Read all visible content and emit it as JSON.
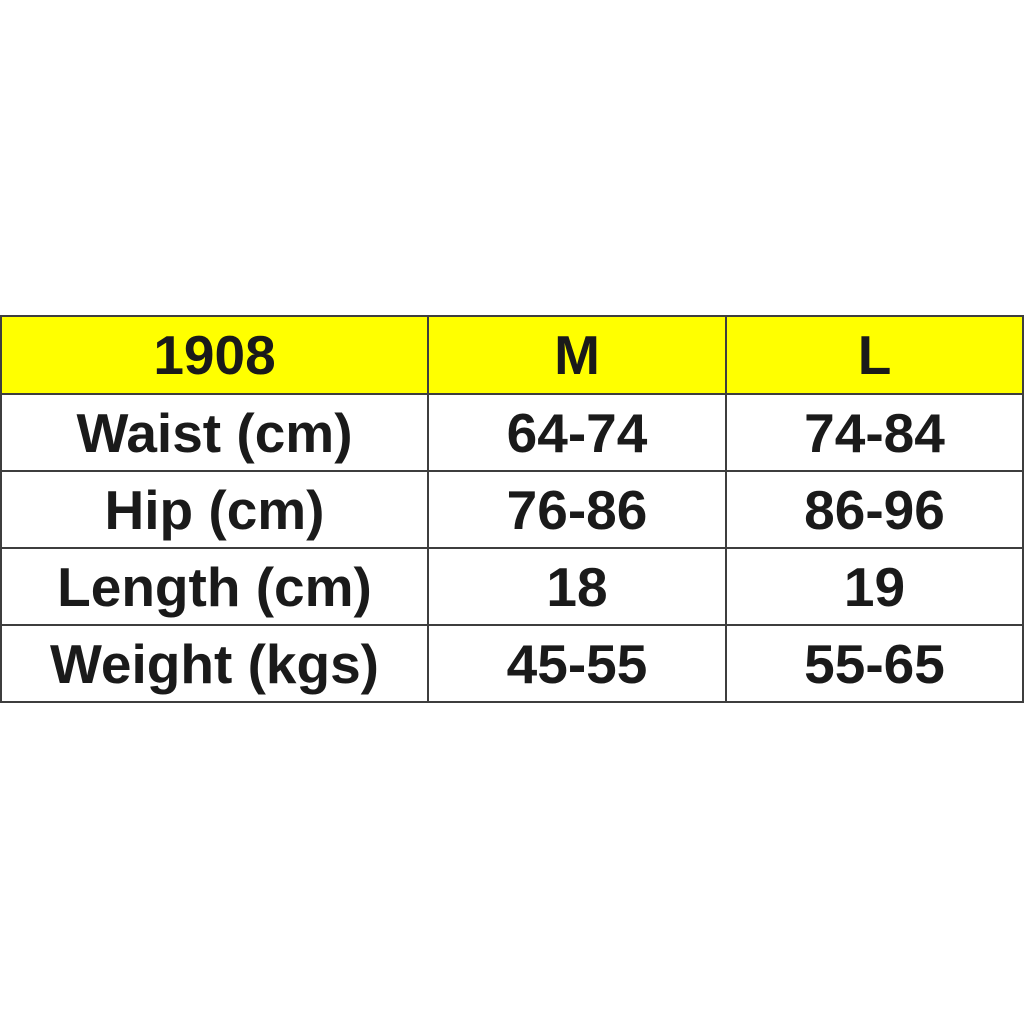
{
  "colors": {
    "header_bg": "#ffff00",
    "border": "#3e3e3e",
    "text": "#1a1a1a",
    "page_bg": "#ffffff"
  },
  "chart_data": {
    "type": "table",
    "title": "1908",
    "columns": [
      "1908",
      "M",
      "L"
    ],
    "rows": [
      [
        "Waist (cm)",
        "64-74",
        "74-84"
      ],
      [
        "Hip (cm)",
        "76-86",
        "86-96"
      ],
      [
        "Length (cm)",
        "18",
        "19"
      ],
      [
        "Weight (kgs)",
        "45-55",
        "55-65"
      ]
    ],
    "layout": {
      "header_background": "#ffff00",
      "grid": "on",
      "text_style": "bold",
      "alignment": "center"
    }
  }
}
